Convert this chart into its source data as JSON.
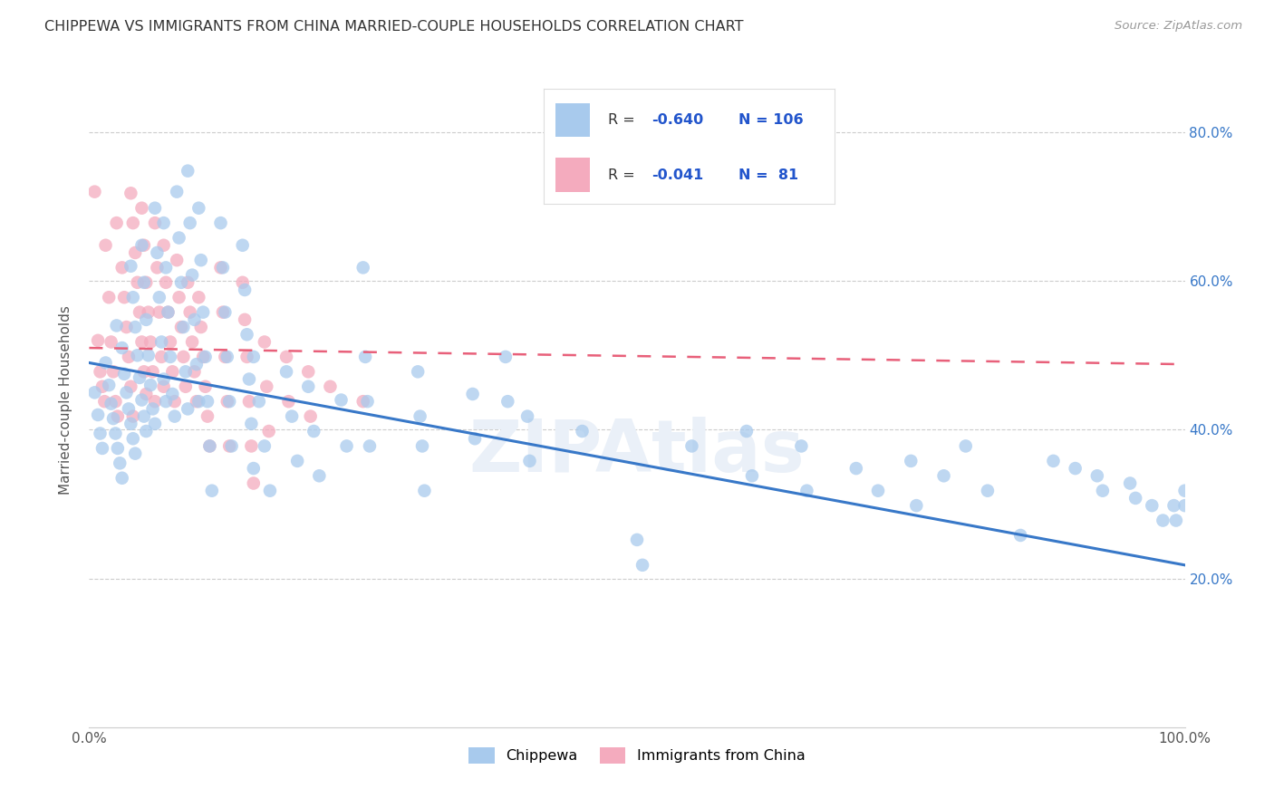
{
  "title": "CHIPPEWA VS IMMIGRANTS FROM CHINA MARRIED-COUPLE HOUSEHOLDS CORRELATION CHART",
  "source": "Source: ZipAtlas.com",
  "ylabel": "Married-couple Households",
  "ytick_values": [
    0.2,
    0.4,
    0.6,
    0.8
  ],
  "xlim": [
    0.0,
    1.0
  ],
  "ylim": [
    0.0,
    0.88
  ],
  "blue_color": "#A8CAED",
  "pink_color": "#F4ABBE",
  "blue_line_color": "#3878C8",
  "pink_line_color": "#E8607A",
  "watermark": "ZIPAtlas",
  "blue_trend_y_start": 0.49,
  "blue_trend_y_end": 0.218,
  "pink_trend_y_start": 0.51,
  "pink_trend_y_end": 0.488,
  "blue_points": [
    [
      0.005,
      0.45
    ],
    [
      0.008,
      0.42
    ],
    [
      0.01,
      0.395
    ],
    [
      0.012,
      0.375
    ],
    [
      0.015,
      0.49
    ],
    [
      0.018,
      0.46
    ],
    [
      0.02,
      0.435
    ],
    [
      0.022,
      0.415
    ],
    [
      0.024,
      0.395
    ],
    [
      0.026,
      0.375
    ],
    [
      0.028,
      0.355
    ],
    [
      0.03,
      0.335
    ],
    [
      0.025,
      0.54
    ],
    [
      0.03,
      0.51
    ],
    [
      0.032,
      0.475
    ],
    [
      0.034,
      0.45
    ],
    [
      0.036,
      0.428
    ],
    [
      0.038,
      0.408
    ],
    [
      0.04,
      0.388
    ],
    [
      0.042,
      0.368
    ],
    [
      0.038,
      0.62
    ],
    [
      0.04,
      0.578
    ],
    [
      0.042,
      0.538
    ],
    [
      0.044,
      0.5
    ],
    [
      0.046,
      0.47
    ],
    [
      0.048,
      0.44
    ],
    [
      0.05,
      0.418
    ],
    [
      0.052,
      0.398
    ],
    [
      0.048,
      0.648
    ],
    [
      0.05,
      0.598
    ],
    [
      0.052,
      0.548
    ],
    [
      0.054,
      0.5
    ],
    [
      0.056,
      0.46
    ],
    [
      0.058,
      0.428
    ],
    [
      0.06,
      0.408
    ],
    [
      0.06,
      0.698
    ],
    [
      0.062,
      0.638
    ],
    [
      0.064,
      0.578
    ],
    [
      0.066,
      0.518
    ],
    [
      0.068,
      0.468
    ],
    [
      0.07,
      0.438
    ],
    [
      0.068,
      0.678
    ],
    [
      0.07,
      0.618
    ],
    [
      0.072,
      0.558
    ],
    [
      0.074,
      0.498
    ],
    [
      0.076,
      0.448
    ],
    [
      0.078,
      0.418
    ],
    [
      0.08,
      0.72
    ],
    [
      0.082,
      0.658
    ],
    [
      0.084,
      0.598
    ],
    [
      0.086,
      0.538
    ],
    [
      0.088,
      0.478
    ],
    [
      0.09,
      0.428
    ],
    [
      0.09,
      0.748
    ],
    [
      0.092,
      0.678
    ],
    [
      0.094,
      0.608
    ],
    [
      0.096,
      0.548
    ],
    [
      0.098,
      0.488
    ],
    [
      0.1,
      0.438
    ],
    [
      0.1,
      0.698
    ],
    [
      0.102,
      0.628
    ],
    [
      0.104,
      0.558
    ],
    [
      0.106,
      0.498
    ],
    [
      0.108,
      0.438
    ],
    [
      0.11,
      0.378
    ],
    [
      0.112,
      0.318
    ],
    [
      0.12,
      0.678
    ],
    [
      0.122,
      0.618
    ],
    [
      0.124,
      0.558
    ],
    [
      0.126,
      0.498
    ],
    [
      0.128,
      0.438
    ],
    [
      0.13,
      0.378
    ],
    [
      0.14,
      0.648
    ],
    [
      0.142,
      0.588
    ],
    [
      0.144,
      0.528
    ],
    [
      0.146,
      0.468
    ],
    [
      0.148,
      0.408
    ],
    [
      0.15,
      0.348
    ],
    [
      0.15,
      0.498
    ],
    [
      0.155,
      0.438
    ],
    [
      0.16,
      0.378
    ],
    [
      0.165,
      0.318
    ],
    [
      0.18,
      0.478
    ],
    [
      0.185,
      0.418
    ],
    [
      0.19,
      0.358
    ],
    [
      0.2,
      0.458
    ],
    [
      0.205,
      0.398
    ],
    [
      0.21,
      0.338
    ],
    [
      0.23,
      0.44
    ],
    [
      0.235,
      0.378
    ],
    [
      0.25,
      0.618
    ],
    [
      0.252,
      0.498
    ],
    [
      0.254,
      0.438
    ],
    [
      0.256,
      0.378
    ],
    [
      0.3,
      0.478
    ],
    [
      0.302,
      0.418
    ],
    [
      0.304,
      0.378
    ],
    [
      0.306,
      0.318
    ],
    [
      0.35,
      0.448
    ],
    [
      0.352,
      0.388
    ],
    [
      0.38,
      0.498
    ],
    [
      0.382,
      0.438
    ],
    [
      0.4,
      0.418
    ],
    [
      0.402,
      0.358
    ],
    [
      0.45,
      0.398
    ],
    [
      0.5,
      0.252
    ],
    [
      0.505,
      0.218
    ],
    [
      0.55,
      0.378
    ],
    [
      0.6,
      0.398
    ],
    [
      0.605,
      0.338
    ],
    [
      0.65,
      0.378
    ],
    [
      0.655,
      0.318
    ],
    [
      0.7,
      0.348
    ],
    [
      0.72,
      0.318
    ],
    [
      0.75,
      0.358
    ],
    [
      0.755,
      0.298
    ],
    [
      0.78,
      0.338
    ],
    [
      0.8,
      0.378
    ],
    [
      0.82,
      0.318
    ],
    [
      0.85,
      0.258
    ],
    [
      0.88,
      0.358
    ],
    [
      0.9,
      0.348
    ],
    [
      0.92,
      0.338
    ],
    [
      0.925,
      0.318
    ],
    [
      0.95,
      0.328
    ],
    [
      0.955,
      0.308
    ],
    [
      0.97,
      0.298
    ],
    [
      0.98,
      0.278
    ],
    [
      0.99,
      0.298
    ],
    [
      0.992,
      0.278
    ],
    [
      1.0,
      0.318
    ],
    [
      1.0,
      0.298
    ]
  ],
  "pink_points": [
    [
      0.005,
      0.72
    ],
    [
      0.008,
      0.52
    ],
    [
      0.01,
      0.478
    ],
    [
      0.012,
      0.458
    ],
    [
      0.014,
      0.438
    ],
    [
      0.015,
      0.648
    ],
    [
      0.018,
      0.578
    ],
    [
      0.02,
      0.518
    ],
    [
      0.022,
      0.478
    ],
    [
      0.024,
      0.438
    ],
    [
      0.026,
      0.418
    ],
    [
      0.025,
      0.678
    ],
    [
      0.03,
      0.618
    ],
    [
      0.032,
      0.578
    ],
    [
      0.034,
      0.538
    ],
    [
      0.036,
      0.498
    ],
    [
      0.038,
      0.458
    ],
    [
      0.04,
      0.418
    ],
    [
      0.038,
      0.718
    ],
    [
      0.04,
      0.678
    ],
    [
      0.042,
      0.638
    ],
    [
      0.044,
      0.598
    ],
    [
      0.046,
      0.558
    ],
    [
      0.048,
      0.518
    ],
    [
      0.05,
      0.478
    ],
    [
      0.052,
      0.448
    ],
    [
      0.048,
      0.698
    ],
    [
      0.05,
      0.648
    ],
    [
      0.052,
      0.598
    ],
    [
      0.054,
      0.558
    ],
    [
      0.056,
      0.518
    ],
    [
      0.058,
      0.478
    ],
    [
      0.06,
      0.438
    ],
    [
      0.06,
      0.678
    ],
    [
      0.062,
      0.618
    ],
    [
      0.064,
      0.558
    ],
    [
      0.066,
      0.498
    ],
    [
      0.068,
      0.458
    ],
    [
      0.068,
      0.648
    ],
    [
      0.07,
      0.598
    ],
    [
      0.072,
      0.558
    ],
    [
      0.074,
      0.518
    ],
    [
      0.076,
      0.478
    ],
    [
      0.078,
      0.438
    ],
    [
      0.08,
      0.628
    ],
    [
      0.082,
      0.578
    ],
    [
      0.084,
      0.538
    ],
    [
      0.086,
      0.498
    ],
    [
      0.088,
      0.458
    ],
    [
      0.09,
      0.598
    ],
    [
      0.092,
      0.558
    ],
    [
      0.094,
      0.518
    ],
    [
      0.096,
      0.478
    ],
    [
      0.098,
      0.438
    ],
    [
      0.1,
      0.578
    ],
    [
      0.102,
      0.538
    ],
    [
      0.104,
      0.498
    ],
    [
      0.106,
      0.458
    ],
    [
      0.108,
      0.418
    ],
    [
      0.11,
      0.378
    ],
    [
      0.12,
      0.618
    ],
    [
      0.122,
      0.558
    ],
    [
      0.124,
      0.498
    ],
    [
      0.126,
      0.438
    ],
    [
      0.128,
      0.378
    ],
    [
      0.14,
      0.598
    ],
    [
      0.142,
      0.548
    ],
    [
      0.144,
      0.498
    ],
    [
      0.146,
      0.438
    ],
    [
      0.148,
      0.378
    ],
    [
      0.15,
      0.328
    ],
    [
      0.16,
      0.518
    ],
    [
      0.162,
      0.458
    ],
    [
      0.164,
      0.398
    ],
    [
      0.18,
      0.498
    ],
    [
      0.182,
      0.438
    ],
    [
      0.2,
      0.478
    ],
    [
      0.202,
      0.418
    ],
    [
      0.22,
      0.458
    ],
    [
      0.25,
      0.438
    ]
  ]
}
